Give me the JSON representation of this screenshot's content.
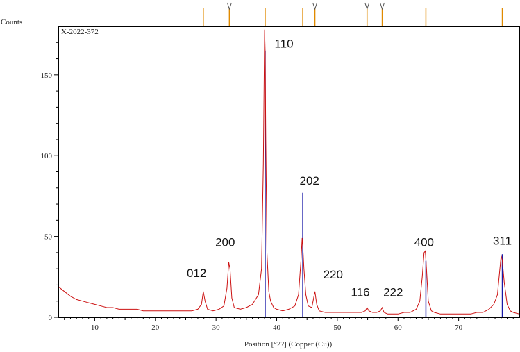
{
  "chart_data": {
    "type": "line",
    "title": "",
    "sample_label": "X-2022-372",
    "xlabel": "Position [°2?] (Copper (Cu))",
    "ylabel": "Counts",
    "xlim": [
      4,
      80
    ],
    "ylim": [
      0,
      180
    ],
    "x_ticks": [
      10,
      20,
      30,
      40,
      50,
      60,
      70
    ],
    "y_ticks": [
      0,
      50,
      100,
      150
    ],
    "grid": false,
    "colors": {
      "pattern": "#cc1111",
      "reference": "#1a1aa8",
      "marker": "#e08a00"
    },
    "series": [
      {
        "x": [
          4.0,
          5.0,
          6.0,
          7.0,
          8.0,
          9.0,
          10.0,
          11.0,
          12.0,
          13.0,
          14.0,
          15.0,
          16.0,
          17.0,
          18.0,
          19.0,
          20.0,
          21.0,
          22.0,
          23.0,
          24.0,
          25.0,
          26.0,
          27.0,
          27.6,
          27.9,
          28.2,
          28.6,
          29.5,
          30.5,
          31.3,
          31.8,
          32.1,
          32.3,
          32.6,
          33.0,
          34.0,
          35.0,
          36.0,
          37.0,
          37.5,
          37.8,
          38.0,
          38.1,
          38.2,
          38.4,
          38.7,
          39.0,
          39.5,
          40.0,
          41.0,
          42.0,
          43.0,
          43.6,
          44.0,
          44.2,
          44.3,
          44.5,
          44.8,
          45.2,
          45.8,
          46.1,
          46.3,
          46.6,
          47.0,
          48.0,
          49.0,
          50.0,
          51.0,
          52.0,
          53.0,
          54.0,
          54.6,
          54.9,
          55.2,
          55.8,
          56.5,
          57.1,
          57.4,
          57.7,
          58.3,
          59.0,
          60.0,
          61.0,
          62.0,
          63.0,
          63.6,
          64.0,
          64.3,
          64.5,
          64.7,
          65.0,
          65.5,
          66.0,
          67.0,
          68.0,
          69.0,
          70.0,
          71.0,
          72.0,
          73.0,
          74.0,
          75.0,
          75.8,
          76.4,
          76.8,
          77.0,
          77.2,
          77.5,
          78.0,
          78.5,
          79.0,
          80.0
        ],
        "y": [
          19,
          16,
          13,
          11,
          10,
          9,
          8,
          7,
          6,
          6,
          5,
          5,
          5,
          5,
          4,
          4,
          4,
          4,
          4,
          4,
          4,
          4,
          4,
          5,
          8,
          16,
          10,
          5,
          4,
          5,
          7,
          18,
          34,
          30,
          12,
          6,
          5,
          6,
          8,
          14,
          30,
          95,
          178,
          165,
          110,
          40,
          16,
          10,
          6,
          5,
          4,
          5,
          7,
          14,
          35,
          49,
          44,
          30,
          14,
          7,
          6,
          12,
          16,
          8,
          4,
          3,
          3,
          3,
          3,
          3,
          3,
          3,
          4,
          6,
          4,
          3,
          3,
          4,
          6,
          3,
          2,
          2,
          2,
          3,
          3,
          5,
          10,
          25,
          40,
          41,
          30,
          10,
          4,
          3,
          2,
          2,
          2,
          2,
          2,
          2,
          3,
          3,
          5,
          8,
          14,
          30,
          38,
          35,
          22,
          8,
          4,
          3,
          2
        ]
      }
    ],
    "reference_lines": [
      {
        "x": 38.1,
        "y": 165
      },
      {
        "x": 44.3,
        "y": 77
      },
      {
        "x": 64.6,
        "y": 35
      },
      {
        "x": 77.2,
        "y": 39
      }
    ],
    "top_markers": [
      {
        "x": 27.9,
        "v": false
      },
      {
        "x": 32.2,
        "v": true
      },
      {
        "x": 38.1,
        "v": false
      },
      {
        "x": 44.3,
        "v": false
      },
      {
        "x": 46.3,
        "v": true
      },
      {
        "x": 54.9,
        "v": true
      },
      {
        "x": 57.4,
        "v": true
      },
      {
        "x": 64.6,
        "v": false
      },
      {
        "x": 77.2,
        "v": false
      }
    ],
    "annotations": [
      {
        "text": "012",
        "x": 26.8,
        "y": 25
      },
      {
        "text": "200",
        "x": 31.5,
        "y": 44
      },
      {
        "text": "110",
        "x": 41.2,
        "y": 167
      },
      {
        "text": "202",
        "x": 45.4,
        "y": 82
      },
      {
        "text": "220",
        "x": 49.3,
        "y": 24
      },
      {
        "text": "116",
        "x": 53.8,
        "y": 13
      },
      {
        "text": "222",
        "x": 59.2,
        "y": 13
      },
      {
        "text": "400",
        "x": 64.3,
        "y": 44
      },
      {
        "text": "311",
        "x": 77.2,
        "y": 45
      }
    ]
  }
}
